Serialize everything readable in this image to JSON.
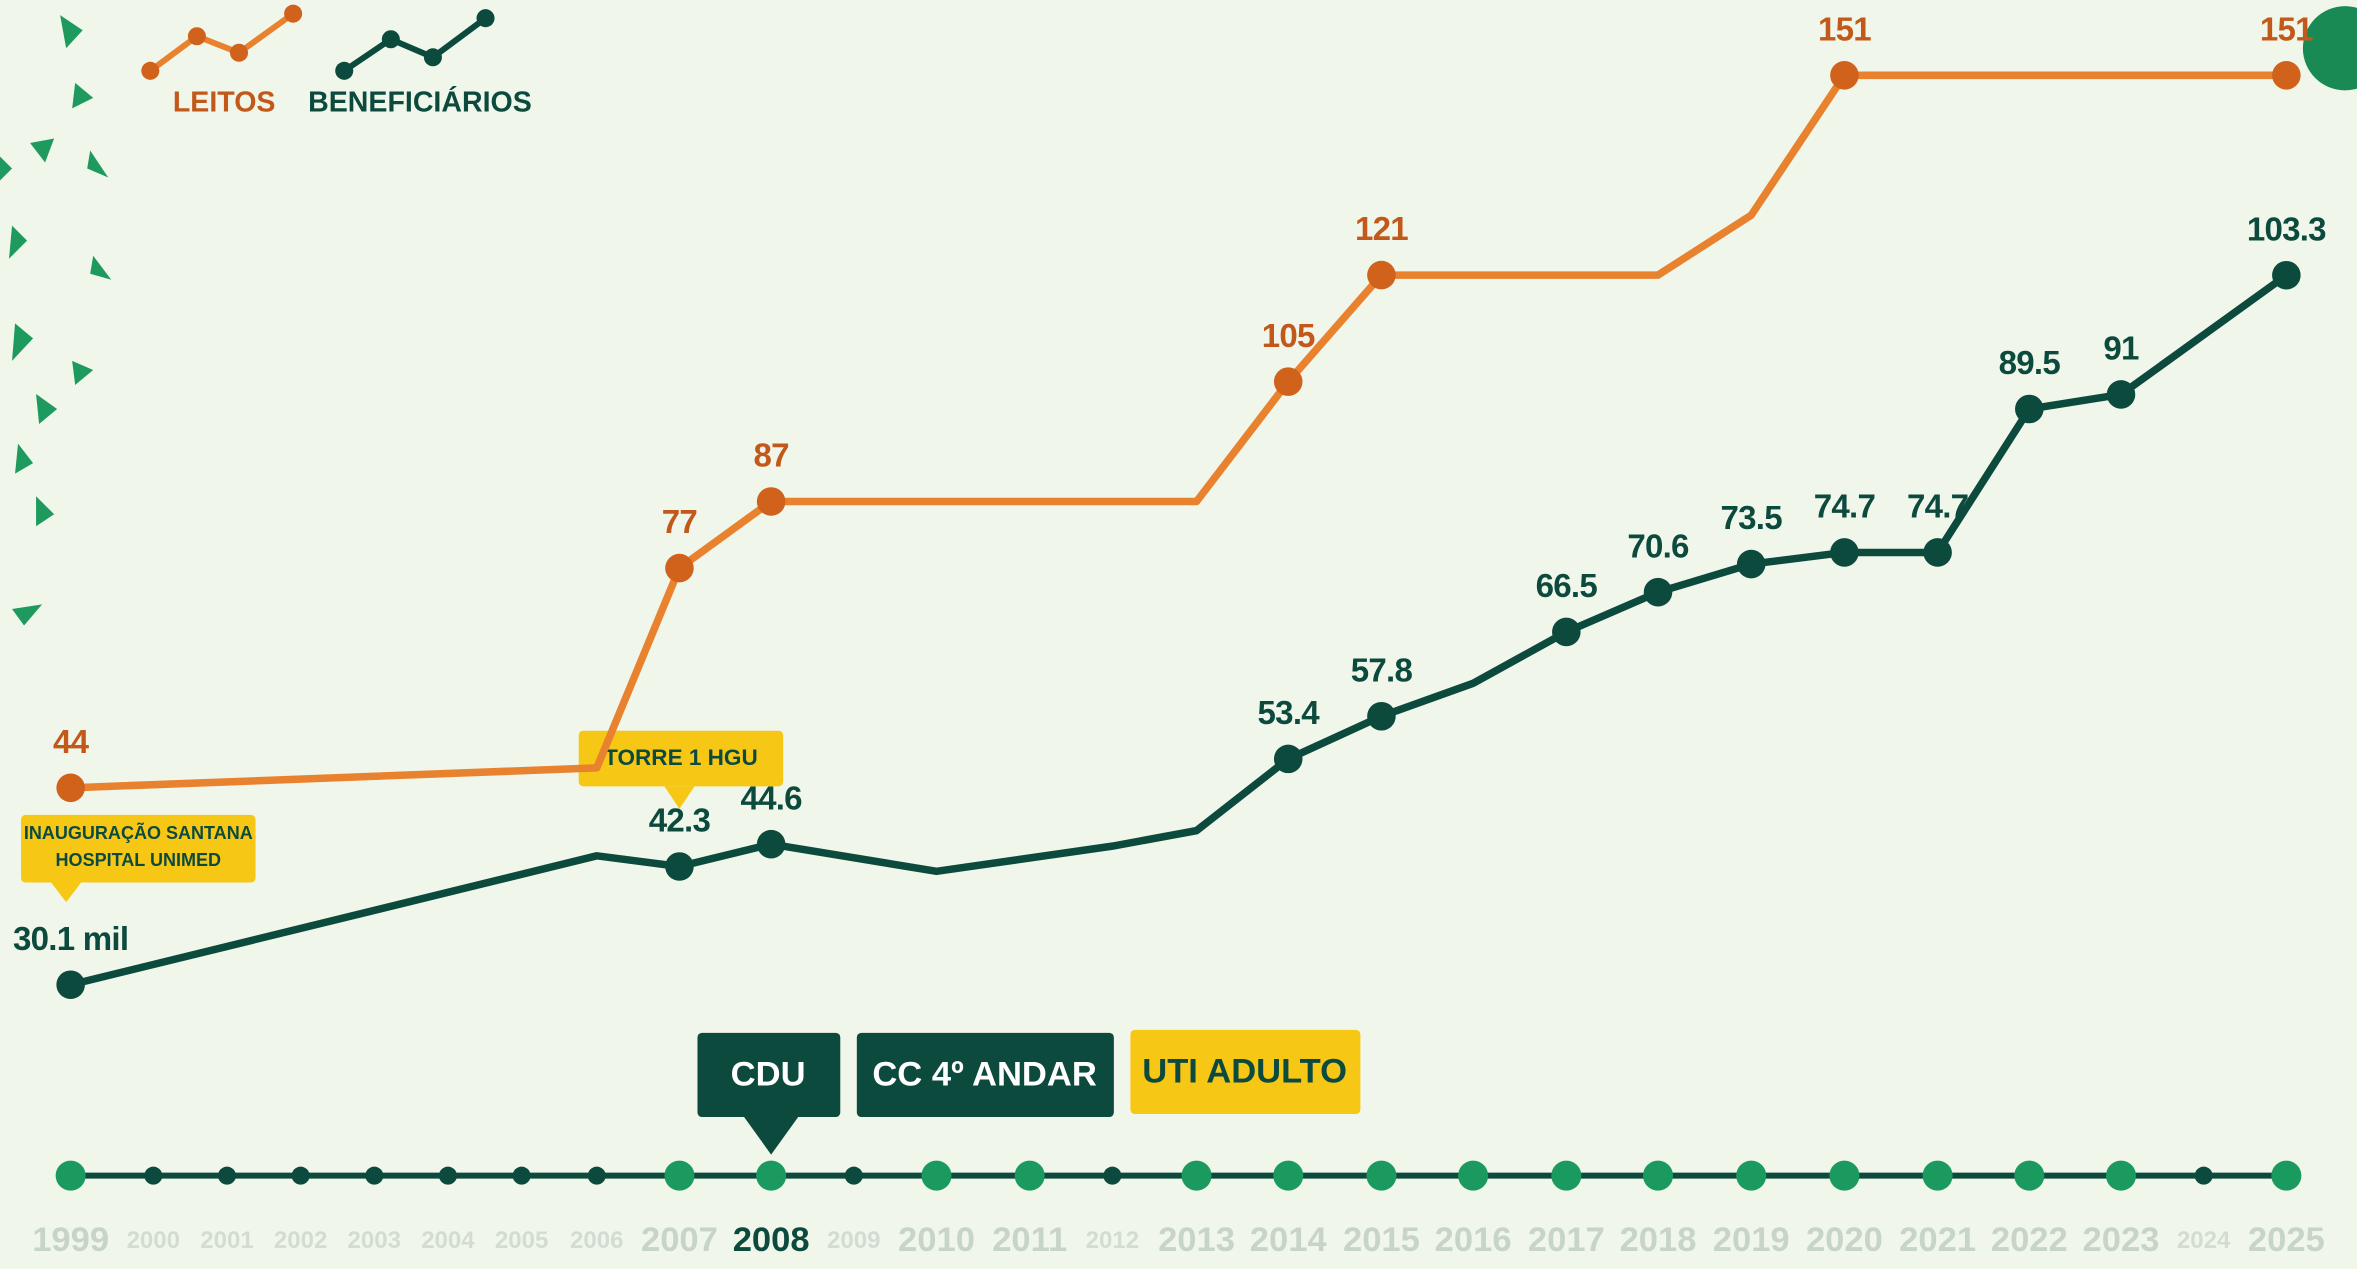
{
  "chart_data": {
    "type": "line",
    "legend": {
      "position": "top-left"
    },
    "series": [
      {
        "name": "LEITOS",
        "color": "#e9822f",
        "marker_color": "#d0621c",
        "label_color": "#c2581a",
        "x": [
          1999,
          2006,
          2007,
          2008,
          2013,
          2014,
          2015,
          2018,
          2019,
          2020,
          2025
        ],
        "values": [
          44,
          47,
          77,
          87,
          87,
          105,
          121,
          121,
          130,
          151,
          151
        ],
        "value_labels": [
          "44",
          null,
          "77",
          "87",
          null,
          "105",
          "121",
          null,
          null,
          "151",
          "151"
        ]
      },
      {
        "name": "BENEFICIÁRIOS",
        "color": "#0d4a3e",
        "marker_color": "#0d4a3e",
        "label_color": "#0d4a3e",
        "x": [
          1999,
          2006,
          2007,
          2008,
          2010,
          2012,
          2013,
          2014,
          2015,
          2016,
          2017,
          2018,
          2019,
          2020,
          2021,
          2022,
          2023,
          2025
        ],
        "values": [
          30.1,
          43.4,
          42.3,
          44.6,
          41.8,
          44.4,
          46,
          53.4,
          57.8,
          61.2,
          66.5,
          70.6,
          73.5,
          74.7,
          74.7,
          89.5,
          91,
          103.3
        ],
        "value_labels": [
          "30.1 mil",
          null,
          "42.3",
          "44.6",
          null,
          null,
          null,
          "53.4",
          "57.8",
          null,
          "66.5",
          "70.6",
          "73.5",
          "74.7",
          "74.7",
          "89.5",
          "91",
          "103.3"
        ]
      }
    ],
    "timeline": {
      "years": [
        1999,
        2000,
        2001,
        2002,
        2003,
        2004,
        2005,
        2006,
        2007,
        2008,
        2009,
        2010,
        2011,
        2012,
        2013,
        2014,
        2015,
        2016,
        2017,
        2018,
        2019,
        2020,
        2021,
        2022,
        2023,
        2024,
        2025
      ],
      "major": [
        true,
        false,
        false,
        false,
        false,
        false,
        false,
        false,
        true,
        true,
        false,
        true,
        true,
        false,
        true,
        true,
        true,
        true,
        true,
        true,
        true,
        true,
        true,
        true,
        true,
        false,
        true
      ],
      "selected": 2008
    },
    "annotations": {
      "inauguracao": [
        "INAUGURAÇÃO SANTANA",
        "HOSPITAL UNIMED"
      ],
      "torre": "TORRE 1 HGU",
      "cdu": "CDU",
      "cc": "CC 4º ANDAR",
      "uti": "UTI ADULTO"
    }
  }
}
